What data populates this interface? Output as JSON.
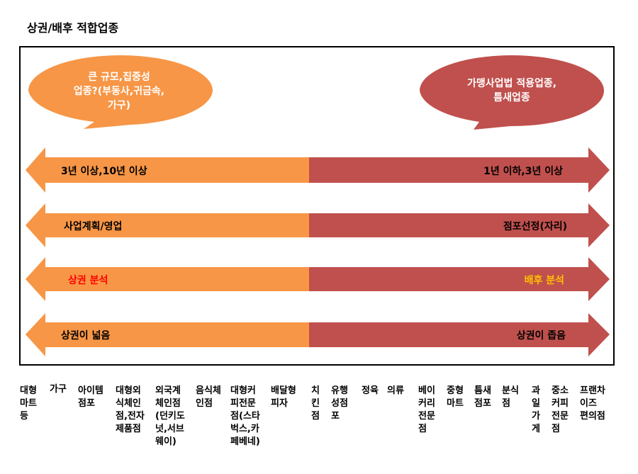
{
  "title": "상권/배후 적합업종",
  "bubbles": {
    "left": {
      "lines": [
        "큰 규모,집중성",
        "업종?(부동사,귀금속,",
        "가구)"
      ],
      "color": "#f79646"
    },
    "right": {
      "lines": [
        "가맹사업법 적용업종,",
        "틈새업종"
      ],
      "color": "#c0504d"
    }
  },
  "arrows": [
    {
      "left": "3년 이상,10년 이상",
      "right": "1년 이하,3년 이상",
      "left_color": "#000000",
      "right_color": "#000000"
    },
    {
      "left": "사업계획/영업",
      "right": "점포선정(자리)",
      "left_color": "#000000",
      "right_color": "#000000"
    },
    {
      "left": "상권 분석",
      "right": "배후 분석",
      "left_color": "#ff0000",
      "right_color": "#ffc000"
    },
    {
      "left": "상권이 넓음",
      "right": "상권이 좁음",
      "left_color": "#000000",
      "right_color": "#000000"
    }
  ],
  "colors": {
    "orange": "#f79646",
    "red": "#c0504d"
  },
  "categories": [
    "대형\n마트\n등",
    "가구",
    "아이템\n점포",
    "대형외\n식체인\n점,전자\n제품점",
    "외국계\n체인점\n(던키도\n넛,서브\n웨이)",
    "음식체\n인점",
    "대형커\n피전문\n점(스타\n벅스,카\n페베네)",
    "배달형\n피자",
    "치\n킨\n점",
    "유행\n성점\n포",
    "정육",
    "의류",
    "베이\n커리\n전문\n점",
    "중형\n마트",
    "틈새\n점포",
    "분식\n점",
    "과\n일\n가\n게",
    "중소\n커피\n전문\n점",
    "프랜차\n이즈\n편의점"
  ]
}
